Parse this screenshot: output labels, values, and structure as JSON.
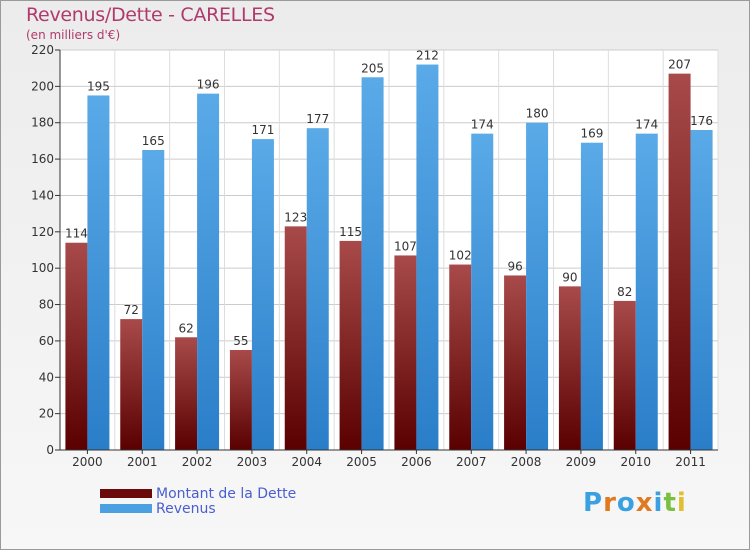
{
  "title": "Revenus/Dette - CARELLES",
  "subtitle": "(en milliers d'€)",
  "colors": {
    "dette_dark": "#5a0000",
    "dette_light": "#a84a4a",
    "revenus_dark": "#2a7ec8",
    "revenus_light": "#5aaae8",
    "title": "#b03a6c",
    "legend_text": "#4a5ed0"
  },
  "legend": {
    "items": [
      {
        "label": "Montant de la Dette",
        "color": "#6a0a0a"
      },
      {
        "label": "Revenus",
        "color": "#4aa0e0"
      }
    ]
  },
  "logo": {
    "letters": [
      "P",
      "r",
      "o",
      "x",
      "i",
      "t",
      "i"
    ],
    "colors": [
      "#3aa0e0",
      "#e07a20",
      "#3aa0e0",
      "#e07a20",
      "#3aa0e0",
      "#7ac040",
      "#e0c030"
    ]
  },
  "chart_data": {
    "type": "bar",
    "title": "Revenus/Dette - CARELLES",
    "ylabel": "(en milliers d'€)",
    "xlabel": "",
    "categories": [
      "2000",
      "2001",
      "2002",
      "2003",
      "2004",
      "2005",
      "2006",
      "2007",
      "2008",
      "2009",
      "2010",
      "2011"
    ],
    "series": [
      {
        "name": "Montant de la Dette",
        "values": [
          114,
          72,
          62,
          55,
          123,
          115,
          107,
          102,
          96,
          90,
          82,
          207
        ]
      },
      {
        "name": "Revenus",
        "values": [
          195,
          165,
          196,
          171,
          177,
          205,
          212,
          174,
          180,
          169,
          174,
          176
        ]
      }
    ],
    "ylim": [
      0,
      220
    ],
    "yticks": [
      0,
      20,
      40,
      60,
      80,
      100,
      120,
      140,
      160,
      180,
      200,
      220
    ],
    "grid": true,
    "legend_position": "bottom-left"
  }
}
